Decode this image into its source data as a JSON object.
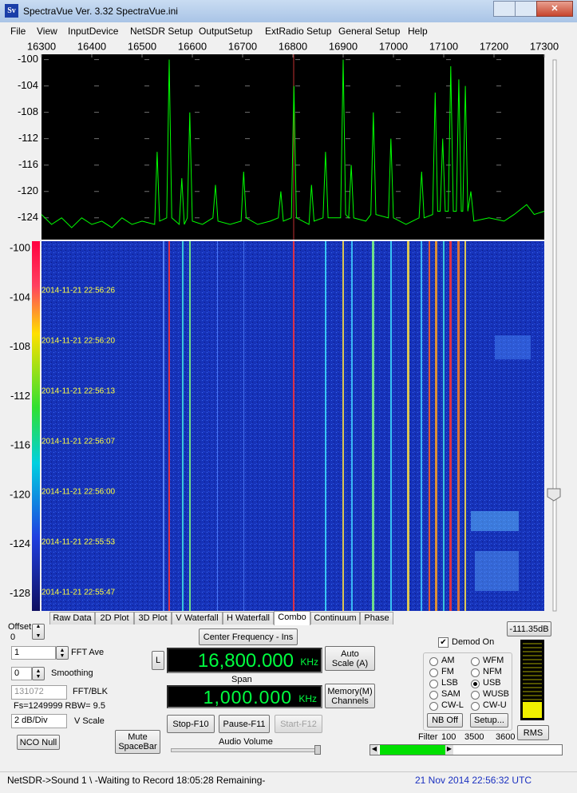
{
  "window": {
    "title": "SpectraVue Ver. 3.32   SpectraVue.ini"
  },
  "menu": [
    "File",
    "View",
    "InputDevice",
    "NetSDR Setup",
    "OutputSetup",
    "ExtRadio Setup",
    "General Setup",
    "Help"
  ],
  "chart_data": {
    "type": "line",
    "xlim": [
      16300,
      17300
    ],
    "xticks": [
      16300,
      16400,
      16500,
      16600,
      16700,
      16800,
      16900,
      17000,
      17100,
      17200,
      17300
    ],
    "ylim": [
      -99.2,
      -127.3
    ],
    "yticks": [
      -100,
      -104,
      -108,
      -112,
      -116,
      -120,
      -124
    ],
    "grid": true,
    "series": [
      {
        "color": "#00ff00",
        "x": [
          16300,
          16320,
          16340,
          16360,
          16380,
          16400,
          16420,
          16440,
          16460,
          16480,
          16500,
          16525,
          16530,
          16535,
          16549,
          16554,
          16559,
          16574,
          16579,
          16584,
          16590,
          16595,
          16600,
          16620,
          16641,
          16646,
          16651,
          16675,
          16697,
          16702,
          16707,
          16730,
          16755,
          16771,
          16776,
          16781,
          16797,
          16802,
          16807,
          16832,
          16837,
          16842,
          16860,
          16865,
          16870,
          16895,
          16900,
          16905,
          16911,
          16916,
          16921,
          16945,
          16955,
          16960,
          16965,
          16990,
          16995,
          17000,
          17025,
          17051,
          17056,
          17061,
          17078,
          17083,
          17088,
          17093,
          17098,
          17103,
          17109,
          17114,
          17119,
          17125,
          17130,
          17135,
          17138,
          17143,
          17148,
          17154,
          17160,
          17190,
          17220,
          17240,
          17265,
          17280,
          17300
        ],
        "values": [
          -123.5,
          -125,
          -124,
          -125.5,
          -124,
          -125,
          -124.5,
          -125.5,
          -124,
          -125,
          -124.5,
          -125,
          -114,
          -124.5,
          -124,
          -100,
          -124,
          -125,
          -118,
          -125,
          -124,
          -108,
          -124.5,
          -125,
          -124,
          -119,
          -124.5,
          -125,
          -124.5,
          -117,
          -124,
          -125,
          -124.5,
          -124,
          -120,
          -124.5,
          -124,
          -104,
          -124,
          -125,
          -119,
          -124.5,
          -124,
          -114,
          -124,
          -124,
          -100,
          -123.5,
          -124,
          -116,
          -124,
          -124.5,
          -123.5,
          -108,
          -123.5,
          -124,
          -112,
          -124,
          -125,
          -124,
          -117,
          -124,
          -123.5,
          -105,
          -123,
          -123,
          -112,
          -123,
          -123,
          -101,
          -123,
          -123,
          -103,
          -123,
          -123,
          -104,
          -123,
          -120,
          -124.5,
          -124,
          -124.5,
          -123.5,
          -122,
          -123.5,
          -123
        ]
      }
    ]
  },
  "waterfall": {
    "scale_lim": [
      -99.4,
      -129.4
    ],
    "scale_ticks": [
      -100,
      -104,
      -108,
      -112,
      -116,
      -120,
      -124,
      -128
    ],
    "timestamps": [
      "2014-11-21 22:56:26",
      "2014-11-21 22:56:20",
      "2014-11-21 22:56:13",
      "2014-11-21 22:56:07",
      "2014-11-21 22:56:00",
      "2014-11-21 22:55:53",
      "2014-11-21 22:55:47"
    ]
  },
  "tabs": [
    "Raw Data",
    "2D Plot",
    "3D Plot",
    "V Waterfall",
    "H Waterfall",
    "Combo",
    "Continuum",
    "Phase"
  ],
  "selected_tab": 5,
  "controls": {
    "offset_label": "Offset",
    "offset_value": "0",
    "fft_ave_value": "1",
    "fft_ave_label": "FFT Ave",
    "smoothing_value": "0",
    "smoothing_label": "Smoothing",
    "fft_blk_value": "131072",
    "fft_blk_label": "FFT/BLK",
    "fs_info": "Fs=1249999 RBW= 9.5",
    "vscale_value": "2 dB/Div",
    "vscale_label": "V Scale",
    "nco_null": "NCO Null",
    "mute": "Mute SpaceBar",
    "center_frequency": "Center Frequency - Ins",
    "l_button": "L",
    "frequency": "16,800.000",
    "frequency_unit": "KHz",
    "span_label": "Span",
    "span": "1,000.000",
    "span_unit": "KHz",
    "auto_scale": "Auto Scale (A)",
    "memory": "Memory(M) Channels",
    "stop": "Stop-F10",
    "pause": "Pause-F11",
    "start": "Start-F12",
    "audio_volume": "Audio Volume",
    "level": "-111.35dB",
    "demod_on_label": "Demod On",
    "demod_on": true,
    "demod_modes": [
      "AM",
      "FM",
      "LSB",
      "SAM",
      "CW-L",
      "WFM",
      "NFM",
      "USB",
      "WUSB",
      "CW-U"
    ],
    "selected_mode": 7,
    "nb_off": "NB Off",
    "setup": "Setup...",
    "rms": "RMS",
    "filter_label": "Filter",
    "filter_values": [
      "100",
      "3500",
      "3600"
    ]
  },
  "status": {
    "left": "NetSDR->Sound 1  \\ -Waiting to Record 18:05:28 Remaining-",
    "right": "21 Nov 2014  22:56:32 UTC"
  }
}
